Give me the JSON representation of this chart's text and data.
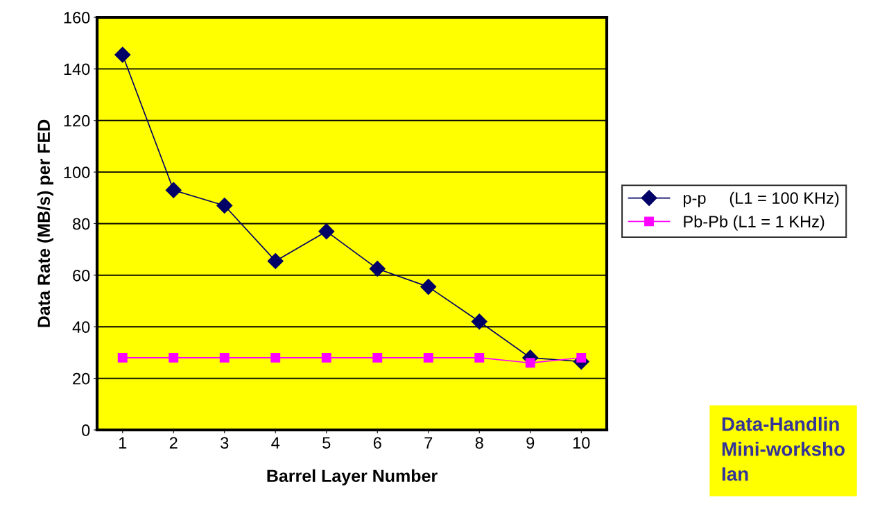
{
  "chart_data": {
    "type": "line",
    "xlabel": "Barrel Layer Number",
    "ylabel": "Data Rate (MB/s) per FED",
    "categories": [
      "1",
      "2",
      "3",
      "4",
      "5",
      "6",
      "7",
      "8",
      "9",
      "10"
    ],
    "series": [
      {
        "name": "p-p     (L1 = 100 KHz)",
        "color": "#000066",
        "marker": "diamond",
        "values": [
          145.5,
          93,
          87,
          65.5,
          77,
          62.5,
          55.5,
          42,
          28,
          26.5
        ]
      },
      {
        "name": "Pb-Pb (L1 = 1 KHz)",
        "color": "#ff00ff",
        "marker": "square",
        "values": [
          28,
          28,
          28,
          28,
          28,
          28,
          28,
          28,
          26,
          28
        ]
      }
    ],
    "ylim": [
      0,
      160
    ],
    "yticks": [
      0,
      20,
      40,
      60,
      80,
      100,
      120,
      140,
      160
    ],
    "grid": "y",
    "legend": "right",
    "line_style": "solid",
    "annotations": [
      "Data-Handlin\nMini-worksho\nIan"
    ]
  }
}
